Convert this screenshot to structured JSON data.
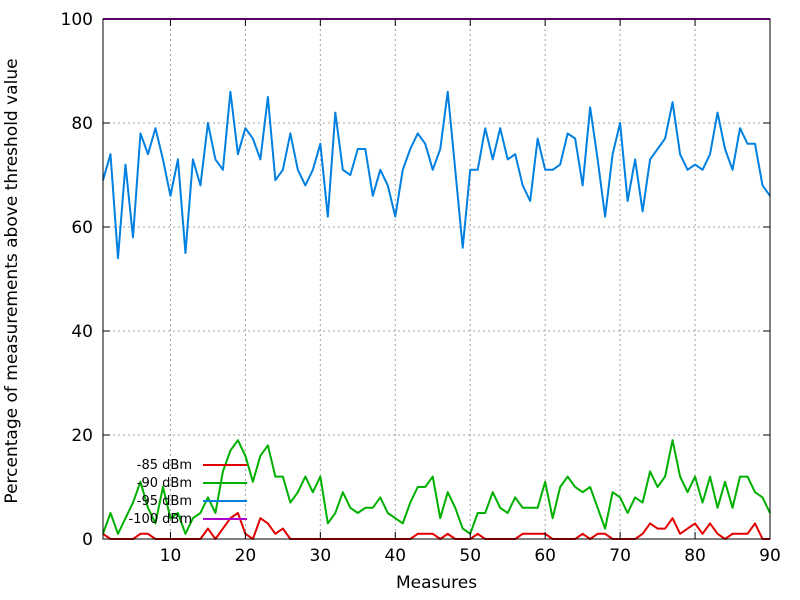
{
  "chart_data": {
    "type": "line",
    "title": "",
    "xlabel": "Measures",
    "ylabel": "Percentage of measurements above threshold value",
    "xlim": [
      1,
      90
    ],
    "ylim": [
      0,
      100
    ],
    "x_ticks": [
      10,
      20,
      30,
      40,
      50,
      60,
      70,
      80,
      90
    ],
    "y_ticks": [
      0,
      20,
      40,
      60,
      80,
      100
    ],
    "grid": true,
    "legend_position": "bottom-left",
    "x": [
      1,
      2,
      3,
      4,
      5,
      6,
      7,
      8,
      9,
      10,
      11,
      12,
      13,
      14,
      15,
      16,
      17,
      18,
      19,
      20,
      21,
      22,
      23,
      24,
      25,
      26,
      27,
      28,
      29,
      30,
      31,
      32,
      33,
      34,
      35,
      36,
      37,
      38,
      39,
      40,
      41,
      42,
      43,
      44,
      45,
      46,
      47,
      48,
      49,
      50,
      51,
      52,
      53,
      54,
      55,
      56,
      57,
      58,
      59,
      60,
      61,
      62,
      63,
      64,
      65,
      66,
      67,
      68,
      69,
      70,
      71,
      72,
      73,
      74,
      75,
      76,
      77,
      78,
      79,
      80,
      81,
      82,
      83,
      84,
      85,
      86,
      87,
      88,
      89,
      90
    ],
    "series": [
      {
        "name": "-85 dBm",
        "color": "#e00000",
        "values": [
          1,
          0,
          0,
          0,
          0,
          1,
          1,
          0,
          0,
          0,
          0,
          0,
          0,
          0,
          2,
          0,
          2,
          4,
          5,
          1,
          0,
          4,
          3,
          1,
          2,
          0,
          0,
          0,
          0,
          0,
          0,
          0,
          0,
          0,
          0,
          0,
          0,
          0,
          0,
          0,
          0,
          0,
          1,
          1,
          1,
          0,
          1,
          0,
          0,
          0,
          1,
          0,
          0,
          0,
          0,
          0,
          1,
          1,
          1,
          1,
          0,
          0,
          0,
          0,
          1,
          0,
          1,
          1,
          0,
          0,
          0,
          0,
          1,
          3,
          2,
          2,
          4,
          1,
          2,
          3,
          1,
          3,
          1,
          0,
          1,
          1,
          1,
          3,
          0,
          0
        ]
      },
      {
        "name": "-90 dBm",
        "color": "#00b000",
        "values": [
          1,
          5,
          1,
          4,
          7,
          11,
          6,
          3,
          10,
          4,
          5,
          1,
          4,
          5,
          8,
          5,
          13,
          17,
          19,
          16,
          11,
          16,
          18,
          12,
          12,
          7,
          9,
          12,
          9,
          12,
          3,
          5,
          9,
          6,
          5,
          6,
          6,
          8,
          5,
          4,
          3,
          7,
          10,
          10,
          12,
          4,
          9,
          6,
          2,
          1,
          5,
          5,
          9,
          6,
          5,
          8,
          6,
          6,
          6,
          11,
          4,
          10,
          12,
          10,
          9,
          10,
          6,
          2,
          9,
          8,
          5,
          8,
          7,
          13,
          10,
          12,
          19,
          12,
          9,
          12,
          7,
          12,
          6,
          11,
          6,
          12,
          12,
          9,
          8,
          5
        ]
      },
      {
        "name": "-95 dBm",
        "color": "#0080e0",
        "values": [
          69,
          74,
          54,
          72,
          58,
          78,
          74,
          79,
          73,
          66,
          73,
          55,
          73,
          68,
          80,
          73,
          71,
          86,
          74,
          79,
          77,
          73,
          85,
          69,
          71,
          78,
          71,
          68,
          71,
          76,
          62,
          82,
          71,
          70,
          75,
          75,
          66,
          71,
          68,
          62,
          71,
          75,
          78,
          76,
          71,
          75,
          86,
          71,
          56,
          71,
          71,
          79,
          73,
          79,
          73,
          74,
          68,
          65,
          77,
          71,
          71,
          72,
          78,
          77,
          68,
          83,
          73,
          62,
          74,
          80,
          65,
          73,
          63,
          73,
          75,
          77,
          84,
          74,
          71,
          72,
          71,
          74,
          82,
          75,
          71,
          79,
          76,
          76,
          68,
          66
        ]
      },
      {
        "name": "-100 dBm",
        "color": "#b000d0",
        "values": [
          100,
          100,
          100,
          100,
          100,
          100,
          100,
          100,
          100,
          100,
          100,
          100,
          100,
          100,
          100,
          100,
          100,
          100,
          100,
          100,
          100,
          100,
          100,
          100,
          100,
          100,
          100,
          100,
          100,
          100,
          100,
          100,
          100,
          100,
          100,
          100,
          100,
          100,
          100,
          100,
          100,
          100,
          100,
          100,
          100,
          100,
          100,
          100,
          100,
          100,
          100,
          100,
          100,
          100,
          100,
          100,
          100,
          100,
          100,
          100,
          100,
          100,
          100,
          100,
          100,
          100,
          100,
          100,
          100,
          100,
          100,
          100,
          100,
          100,
          100,
          100,
          100,
          100,
          100,
          100,
          100,
          100,
          100,
          100,
          100,
          100,
          100,
          100,
          100,
          100
        ]
      }
    ]
  }
}
